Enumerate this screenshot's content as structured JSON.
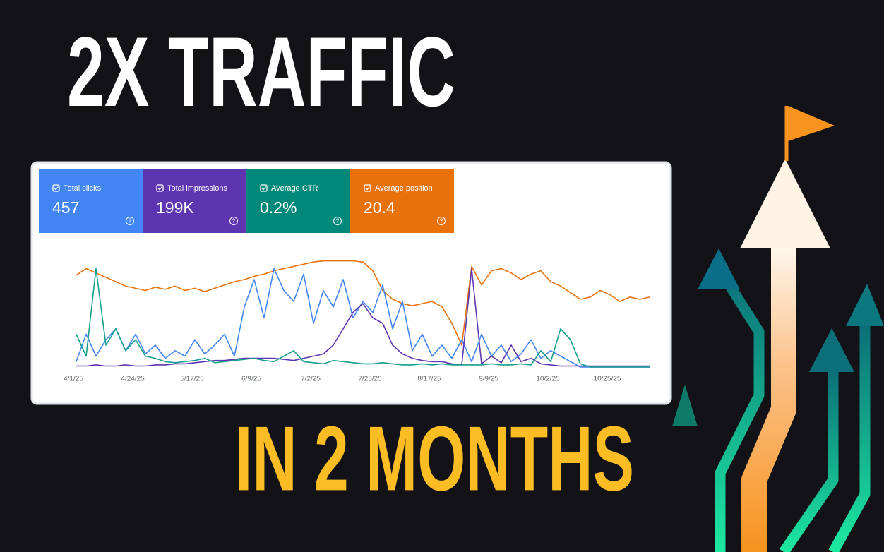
{
  "headline": "2X TRAFFIC",
  "subheadline": "IN 2 MONTHS",
  "metrics": [
    {
      "label": "Total clicks",
      "value": "457",
      "color": "#4285f4"
    },
    {
      "label": "Total impressions",
      "value": "199K",
      "color": "#5e35b1"
    },
    {
      "label": "Average CTR",
      "value": "0.2%",
      "color": "#00897b"
    },
    {
      "label": "Average position",
      "value": "20.4",
      "color": "#e8710a"
    }
  ],
  "chart_data": {
    "type": "line",
    "categories": [
      "4/1/25",
      null,
      null,
      null,
      null,
      null,
      "4/24/25",
      null,
      null,
      null,
      null,
      null,
      "5/17/25",
      null,
      null,
      null,
      null,
      null,
      "6/9/25",
      null,
      null,
      null,
      null,
      null,
      "7/2/25",
      null,
      null,
      null,
      null,
      null,
      "7/25/25",
      null,
      null,
      null,
      null,
      null,
      "8/17/25",
      null,
      null,
      null,
      null,
      null,
      "9/9/25",
      null,
      null,
      null,
      null,
      null,
      "10/2/25",
      null,
      null,
      null,
      null,
      null,
      "10/25/25",
      null,
      null,
      null,
      null
    ],
    "ylim": [
      0,
      100
    ],
    "series": [
      {
        "name": "Average position",
        "color": "#e8710a",
        "values": [
          84,
          90,
          86,
          82,
          78,
          74,
          72,
          70,
          73,
          71,
          74,
          70,
          72,
          69,
          72,
          75,
          78,
          80,
          83,
          85,
          88,
          90,
          92,
          94,
          96,
          97,
          97,
          97,
          97,
          96,
          88,
          70,
          62,
          58,
          56,
          58,
          60,
          55,
          40,
          20,
          92,
          75,
          88,
          90,
          86,
          80,
          85,
          88,
          78,
          74,
          68,
          62,
          64,
          70,
          66,
          60,
          64,
          62,
          64
        ]
      },
      {
        "name": "Total clicks",
        "color": "#4285f4",
        "values": [
          5,
          30,
          10,
          25,
          35,
          15,
          30,
          12,
          20,
          8,
          15,
          10,
          25,
          12,
          20,
          30,
          10,
          55,
          80,
          45,
          90,
          70,
          60,
          85,
          40,
          70,
          55,
          80,
          45,
          60,
          50,
          75,
          35,
          60,
          15,
          30,
          10,
          20,
          8,
          25,
          5,
          30,
          10,
          20,
          5,
          12,
          25,
          8,
          15,
          10,
          5,
          0,
          0,
          0,
          0,
          0,
          0,
          0,
          0
        ]
      },
      {
        "name": "Total impressions",
        "color": "#5e35b1",
        "values": [
          1,
          1,
          2,
          1,
          1,
          2,
          1,
          1,
          2,
          2,
          3,
          3,
          4,
          5,
          6,
          6,
          7,
          8,
          8,
          8,
          8,
          7,
          6,
          8,
          10,
          12,
          20,
          35,
          50,
          58,
          45,
          40,
          20,
          12,
          8,
          6,
          5,
          5,
          3,
          2,
          90,
          3,
          10,
          4,
          20,
          5,
          8,
          3,
          2,
          1,
          1,
          1,
          1,
          1,
          1,
          1,
          1,
          1,
          1
        ]
      },
      {
        "name": "Average CTR",
        "color": "#129c8c",
        "values": [
          30,
          10,
          90,
          20,
          35,
          15,
          25,
          10,
          8,
          5,
          4,
          5,
          6,
          8,
          4,
          5,
          6,
          7,
          8,
          6,
          5,
          10,
          15,
          5,
          4,
          3,
          6,
          5,
          4,
          3,
          3,
          4,
          3,
          2,
          2,
          3,
          2,
          3,
          2,
          2,
          2,
          2,
          3,
          2,
          2,
          3,
          2,
          15,
          5,
          35,
          25,
          3,
          0,
          0,
          0,
          0,
          0,
          0,
          0
        ]
      }
    ]
  }
}
